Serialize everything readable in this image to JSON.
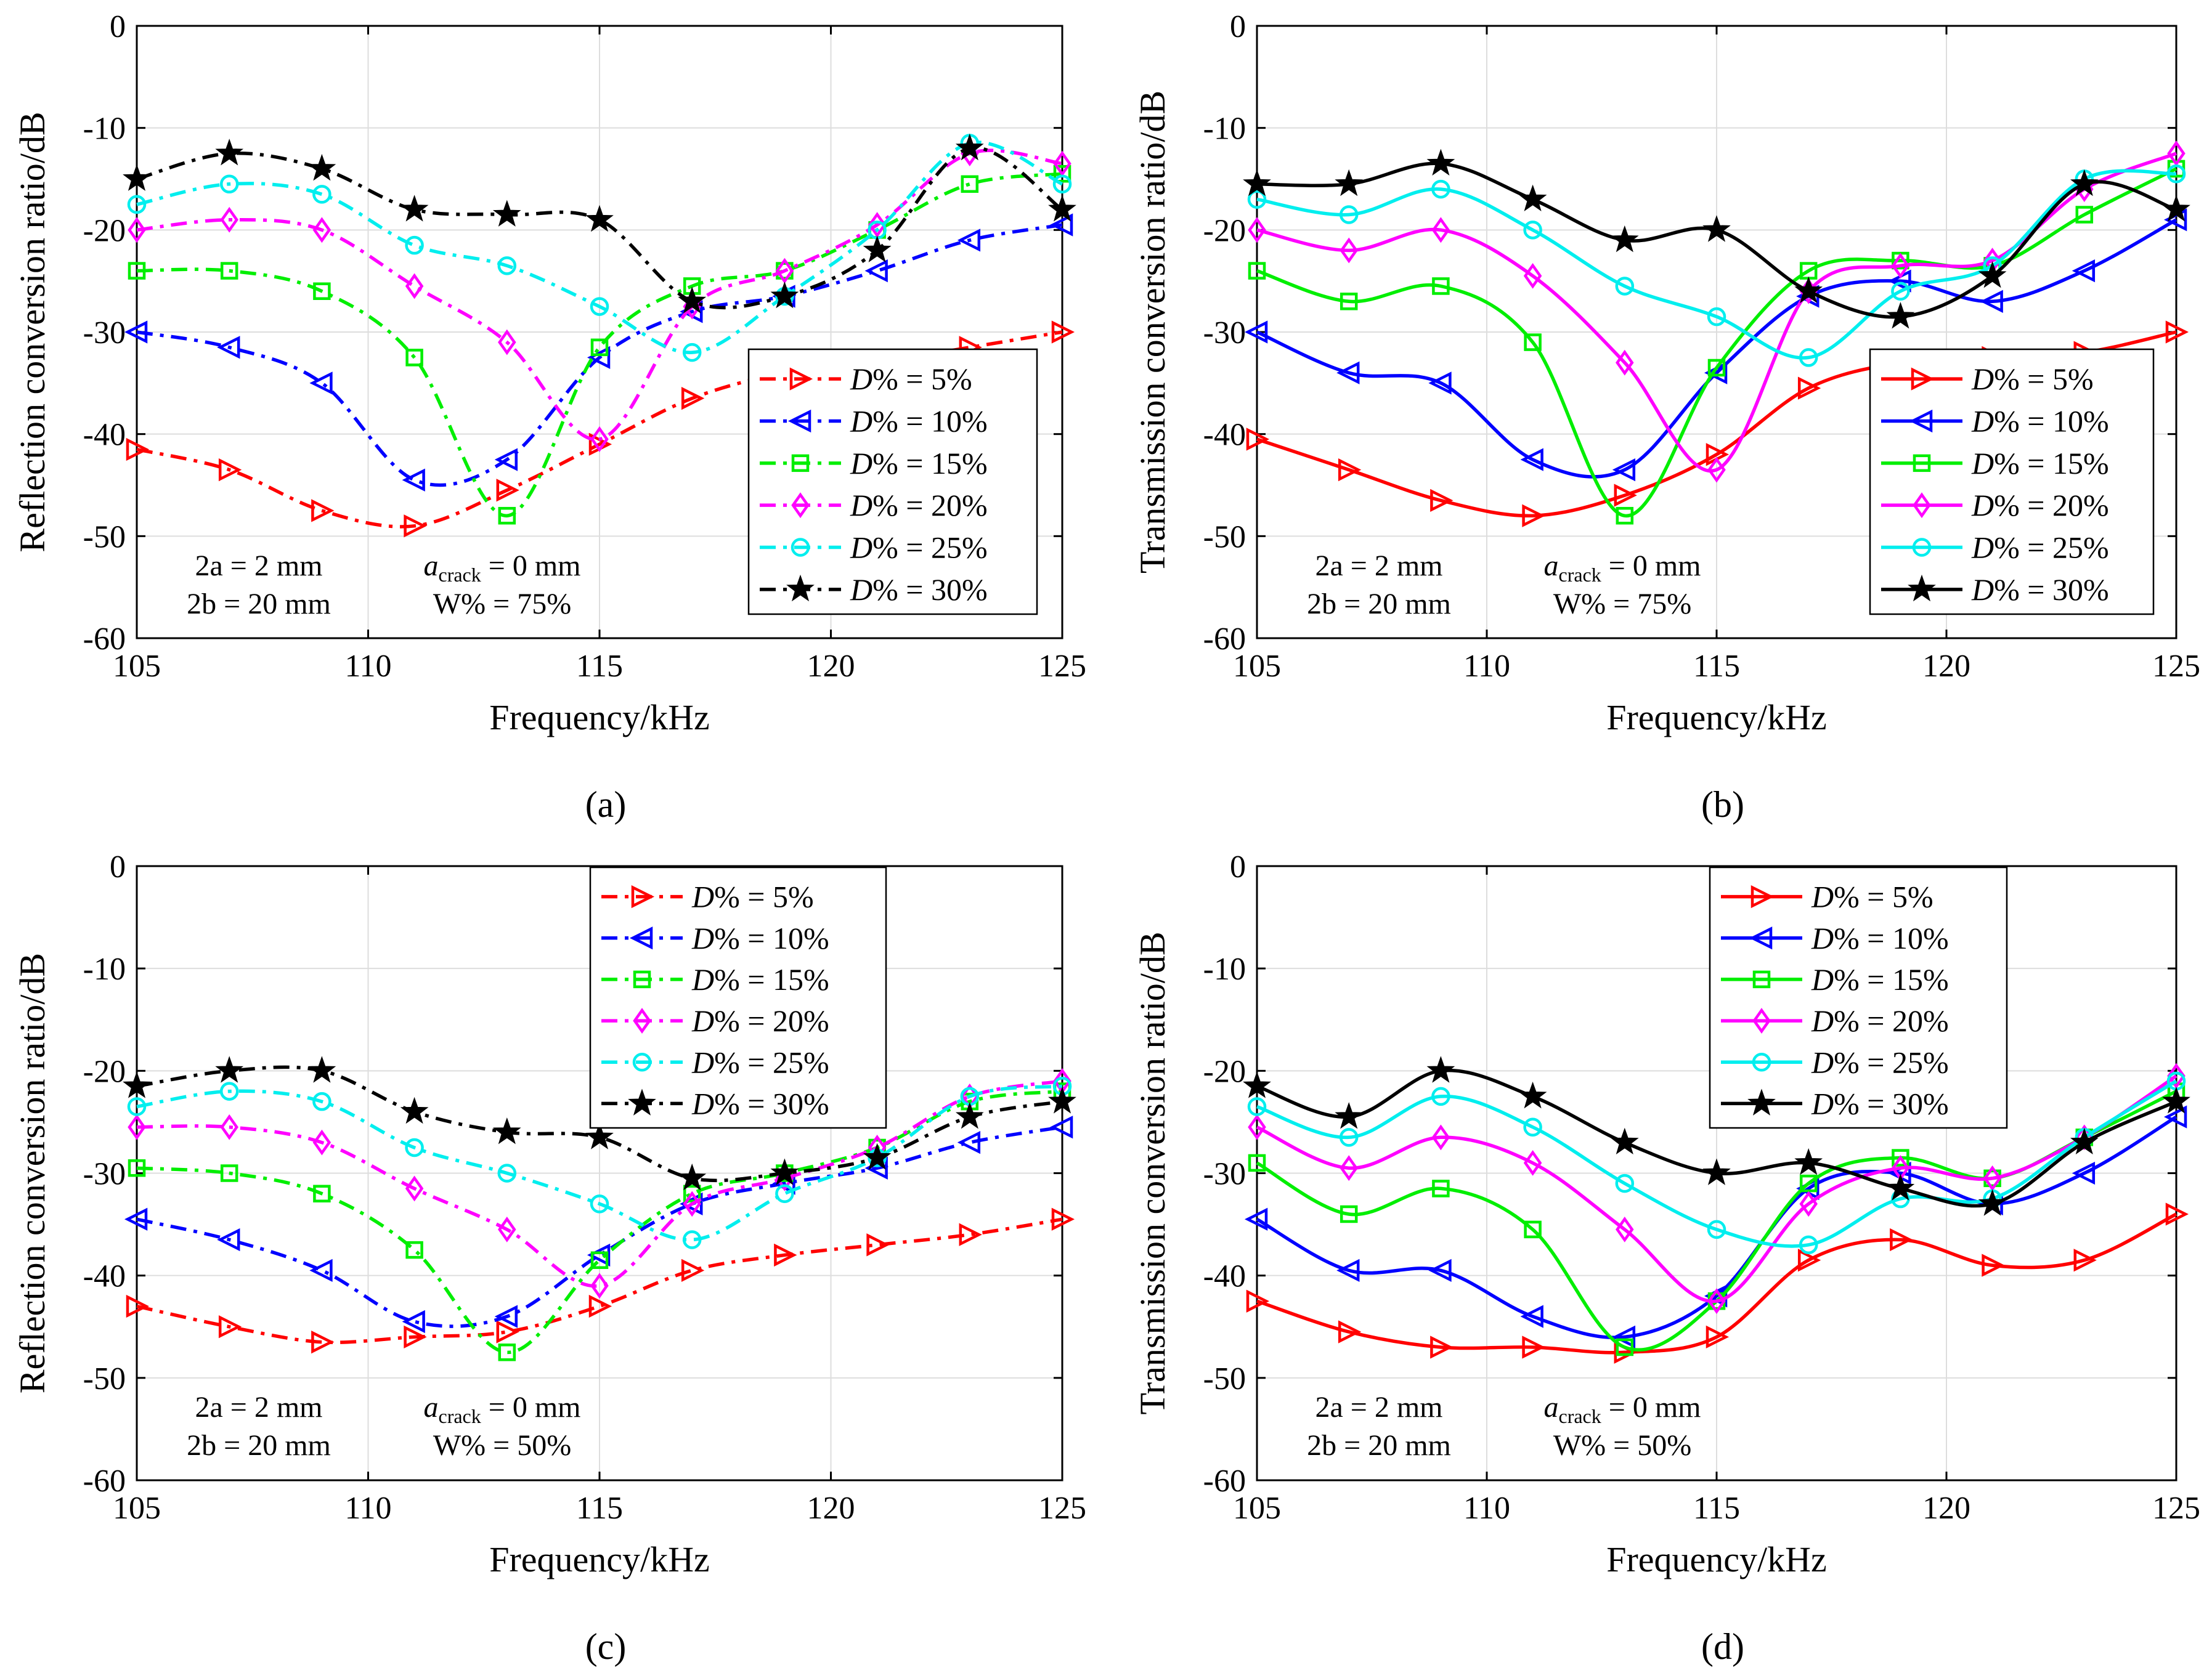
{
  "figure": {
    "x_label": "Frequency/kHz",
    "x_ticks": [
      "105",
      "110",
      "115",
      "120",
      "125"
    ],
    "y_ticks": [
      "0",
      "-10",
      "-20",
      "-30",
      "-40",
      "-50",
      "-60"
    ],
    "legend_prefix": "D",
    "series_colors": [
      "#ff0000",
      "#0000ff",
      "#00ee00",
      "#ff00ff",
      "#00eeee",
      "#000000"
    ],
    "series_markers": [
      "triangle-right",
      "triangle-left",
      "square",
      "diamond",
      "circle",
      "star"
    ]
  },
  "chart_data": [
    {
      "type": "line",
      "panel_label": "(a)",
      "title": "",
      "xlabel": "Frequency/kHz",
      "ylabel": "Reflection conversion ratio/dB",
      "xlim": [
        105,
        125
      ],
      "ylim": [
        -60,
        0
      ],
      "grid": true,
      "line_style": "dash-dot",
      "legend_position": "right",
      "annotation": {
        "a": "2a = 2 mm",
        "b": "2b = 20 mm",
        "crack_base": "a",
        "crack_sub": "crack",
        "crack_rest": " = 0 mm",
        "w": "W% = 75%"
      },
      "x": [
        105,
        107,
        109,
        111,
        113,
        115,
        117,
        119,
        121,
        123,
        125
      ],
      "series": [
        {
          "name": "% = 5%",
          "values": [
            -41.5,
            -43.5,
            -47.5,
            -49,
            -45.5,
            -41,
            -36.5,
            -34,
            -33,
            -31.5,
            -30
          ]
        },
        {
          "name": "% = 10%",
          "values": [
            -30,
            -31.5,
            -35,
            -44.5,
            -42.5,
            -32.5,
            -28,
            -26.5,
            -24,
            -21,
            -19.5
          ]
        },
        {
          "name": "% = 15%",
          "values": [
            -24,
            -24,
            -26,
            -32.5,
            -48,
            -31.5,
            -25.5,
            -24,
            -20,
            -15.5,
            -14.5
          ]
        },
        {
          "name": "% = 20%",
          "values": [
            -20,
            -19,
            -20,
            -25.5,
            -31,
            -40.5,
            -27.5,
            -24,
            -19.5,
            -12.5,
            -13.5
          ]
        },
        {
          "name": "% = 25%",
          "values": [
            -17.5,
            -15.5,
            -16.5,
            -21.5,
            -23.5,
            -27.5,
            -32,
            -26.5,
            -20,
            -11.5,
            -15.5
          ]
        },
        {
          "name": "% = 30%",
          "values": [
            -15,
            -12.5,
            -14,
            -18,
            -18.5,
            -19,
            -27,
            -26.5,
            -22,
            -12,
            -18
          ]
        }
      ]
    },
    {
      "type": "line",
      "panel_label": "(b)",
      "title": "",
      "xlabel": "Frequency/kHz",
      "ylabel": "Transmission conversion ratio/dB",
      "xlim": [
        105,
        125
      ],
      "ylim": [
        -60,
        0
      ],
      "grid": true,
      "line_style": "solid",
      "legend_position": "right",
      "annotation": {
        "a": "2a = 2 mm",
        "b": "2b = 20 mm",
        "crack_base": "a",
        "crack_sub": "crack",
        "crack_rest": " = 0 mm",
        "w": "W% = 75%"
      },
      "x": [
        105,
        107,
        109,
        111,
        113,
        115,
        117,
        119,
        121,
        123,
        125
      ],
      "series": [
        {
          "name": "% = 5%",
          "values": [
            -40.5,
            -43.5,
            -46.5,
            -48,
            -46,
            -42,
            -35.5,
            -33,
            -32.5,
            -32,
            -30
          ]
        },
        {
          "name": "% = 10%",
          "values": [
            -30,
            -34,
            -35,
            -42.5,
            -43.5,
            -34,
            -26.5,
            -25,
            -27,
            -24,
            -19
          ]
        },
        {
          "name": "% = 15%",
          "values": [
            -24,
            -27,
            -25.5,
            -31,
            -48,
            -33.5,
            -24,
            -23,
            -23.5,
            -18.5,
            -14
          ]
        },
        {
          "name": "% = 20%",
          "values": [
            -20,
            -22,
            -20,
            -24.5,
            -33,
            -43.5,
            -26,
            -23.5,
            -23,
            -16,
            -12.5
          ]
        },
        {
          "name": "% = 25%",
          "values": [
            -17,
            -18.5,
            -16,
            -20,
            -25.5,
            -28.5,
            -32.5,
            -26,
            -23.5,
            -15,
            -14.5
          ]
        },
        {
          "name": "% = 30%",
          "values": [
            -15.5,
            -15.5,
            -13.5,
            -17,
            -21,
            -20,
            -26,
            -28.5,
            -24.5,
            -15.5,
            -18
          ]
        }
      ]
    },
    {
      "type": "line",
      "panel_label": "(c)",
      "title": "",
      "xlabel": "Frequency/kHz",
      "ylabel": "Reflection conversion ratio/dB",
      "xlim": [
        105,
        125
      ],
      "ylim": [
        -60,
        0
      ],
      "grid": true,
      "line_style": "dash-dot",
      "legend_position": "top-center",
      "annotation": {
        "a": "2a = 2 mm",
        "b": "2b = 20 mm",
        "crack_base": "a",
        "crack_sub": "crack",
        "crack_rest": " = 0 mm",
        "w": "W% = 50%"
      },
      "x": [
        105,
        107,
        109,
        111,
        113,
        115,
        117,
        119,
        121,
        123,
        125
      ],
      "series": [
        {
          "name": "% = 5%",
          "values": [
            -43,
            -45,
            -46.5,
            -46,
            -45.5,
            -43,
            -39.5,
            -38,
            -37,
            -36,
            -34.5
          ]
        },
        {
          "name": "% = 10%",
          "values": [
            -34.5,
            -36.5,
            -39.5,
            -44.5,
            -44,
            -38,
            -33,
            -31,
            -29.5,
            -27,
            -25.5
          ]
        },
        {
          "name": "% = 15%",
          "values": [
            -29.5,
            -30,
            -32,
            -37.5,
            -47.5,
            -38.5,
            -32,
            -30,
            -27.5,
            -23,
            -22
          ]
        },
        {
          "name": "% = 20%",
          "values": [
            -25.5,
            -25.5,
            -27,
            -31.5,
            -35.5,
            -41,
            -33,
            -30.5,
            -27.5,
            -22.5,
            -21
          ]
        },
        {
          "name": "% = 25%",
          "values": [
            -23.5,
            -22,
            -23,
            -27.5,
            -30,
            -33,
            -36.5,
            -32,
            -28.5,
            -22.5,
            -21.5
          ]
        },
        {
          "name": "% = 30%",
          "values": [
            -21.5,
            -20,
            -20,
            -24,
            -26,
            -26.5,
            -30.5,
            -30,
            -28.5,
            -24.5,
            -23
          ]
        }
      ]
    },
    {
      "type": "line",
      "panel_label": "(d)",
      "title": "",
      "xlabel": "Frequency/kHz",
      "ylabel": "Transmission conversion ratio/dB",
      "xlim": [
        105,
        125
      ],
      "ylim": [
        -60,
        0
      ],
      "grid": true,
      "line_style": "solid",
      "legend_position": "top-center",
      "annotation": {
        "a": "2a = 2 mm",
        "b": "2b = 20 mm",
        "crack_base": "a",
        "crack_sub": "crack",
        "crack_rest": " = 0 mm",
        "w": "W% = 50%"
      },
      "x": [
        105,
        107,
        109,
        111,
        113,
        115,
        117,
        119,
        121,
        123,
        125
      ],
      "series": [
        {
          "name": "% = 5%",
          "values": [
            -42.5,
            -45.5,
            -47,
            -47,
            -47.5,
            -46,
            -38.5,
            -36.5,
            -39,
            -38.5,
            -34
          ]
        },
        {
          "name": "% = 10%",
          "values": [
            -34.5,
            -39.5,
            -39.5,
            -44,
            -46,
            -42,
            -31.5,
            -30,
            -33,
            -30,
            -24.5
          ]
        },
        {
          "name": "% = 15%",
          "values": [
            -29,
            -34,
            -31.5,
            -35.5,
            -47,
            -42.5,
            -31,
            -28.5,
            -30.5,
            -26.5,
            -22
          ]
        },
        {
          "name": "% = 20%",
          "values": [
            -25.5,
            -29.5,
            -26.5,
            -29,
            -35.5,
            -42.5,
            -33,
            -29.5,
            -30.5,
            -26.5,
            -20.5
          ]
        },
        {
          "name": "% = 25%",
          "values": [
            -23.5,
            -26.5,
            -22.5,
            -25.5,
            -31,
            -35.5,
            -37,
            -32.5,
            -32.5,
            -26.5,
            -21
          ]
        },
        {
          "name": "% = 30%",
          "values": [
            -21.5,
            -24.5,
            -20,
            -22.5,
            -27,
            -30,
            -29,
            -31.5,
            -33,
            -27,
            -23
          ]
        }
      ]
    }
  ]
}
